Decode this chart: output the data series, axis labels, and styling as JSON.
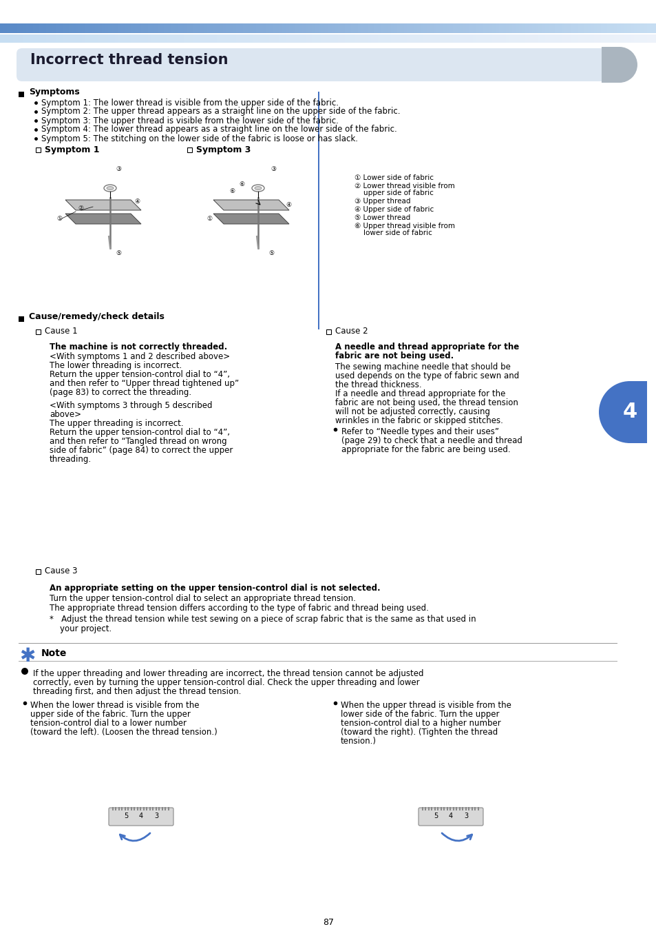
{
  "page_bg": "#ffffff",
  "title_box_color": "#dce6f1",
  "title_text": "Incorrect thread tension",
  "title_font_size": 15,
  "body_font_size": 8.5,
  "small_font_size": 7.5,
  "section_label_symptoms": "Symptoms",
  "symptom_items": [
    "Symptom 1: The lower thread is visible from the upper side of the fabric.",
    "Symptom 2: The upper thread appears as a straight line on the upper side of the fabric.",
    "Symptom 3: The upper thread is visible from the lower side of the fabric.",
    "Symptom 4: The lower thread appears as a straight line on the lower side of the fabric.",
    "Symptom 5: The stitching on the lower side of the fabric is loose or has slack."
  ],
  "symptom1_label": "Symptom 1",
  "symptom3_label": "Symptom 3",
  "legend_items": [
    "① Lower side of fabric",
    "② Lower thread visible from",
    "    upper side of fabric",
    "③ Upper thread",
    "④ Upper side of fabric",
    "⑤ Lower thread",
    "⑥ Upper thread visible from",
    "    lower side of fabric"
  ],
  "section_cause_remedy": "Cause/remedy/check details",
  "cause1_label": "Cause 1",
  "cause1_bold": "The machine is not correctly threaded.",
  "cause1_text1a": "<With symptoms 1 and 2 described above>",
  "cause1_text1b": "The lower threading is incorrect.",
  "cause1_text1c": "Return the upper tension-control dial to “4”,",
  "cause1_text1d": "and then refer to “Upper thread tightened up”",
  "cause1_text1e": "(page 83) to correct the threading.",
  "cause1_text2a": "<With symptoms 3 through 5 described",
  "cause1_text2b": "above>",
  "cause1_text2c": "The upper threading is incorrect.",
  "cause1_text2d": "Return the upper tension-control dial to “4”,",
  "cause1_text2e": "and then refer to “Tangled thread on wrong",
  "cause1_text2f": "side of fabric” (page 84) to correct the upper",
  "cause1_text2g": "threading.",
  "cause2_label": "Cause 2",
  "cause2_bold1": "A needle and thread appropriate for the",
  "cause2_bold2": "fabric are not being used.",
  "cause2_lines": [
    "The sewing machine needle that should be",
    "used depends on the type of fabric sewn and",
    "the thread thickness.",
    "If a needle and thread appropriate for the",
    "fabric are not being used, the thread tension",
    "will not be adjusted correctly, causing",
    "wrinkles in the fabric or skipped stitches."
  ],
  "cause2_bullet1": "Refer to “Needle types and their uses”",
  "cause2_bullet2": "(page 29) to check that a needle and thread",
  "cause2_bullet3": "appropriate for the fabric are being used.",
  "cause3_label": "Cause 3",
  "cause3_bold": "An appropriate setting on the upper tension-control dial is not selected.",
  "cause3_line1": "Turn the upper tension-control dial to select an appropriate thread tension.",
  "cause3_line2": "The appropriate thread tension differs according to the type of fabric and thread being used.",
  "cause3_asterisk1": "*   Adjust the thread tension while test sewing on a piece of scrap fabric that is the same as that used in",
  "cause3_asterisk2": "    your project.",
  "note_title": "Note",
  "note_bullet1": "If the upper threading and lower threading are incorrect, the thread tension cannot be adjusted",
  "note_bullet2": "correctly, even by turning the upper tension-control dial. Check the upper threading and lower",
  "note_bullet3": "threading first, and then adjust the thread tension.",
  "note_left1": "When the lower thread is visible from the",
  "note_left2": "upper side of the fabric. Turn the upper",
  "note_left3": "tension-control dial to a lower number",
  "note_left4": "(toward the left). (Loosen the thread tension.)",
  "note_right1": "When the upper thread is visible from the",
  "note_right2": "lower side of the fabric. Turn the upper",
  "note_right3": "tension-control dial to a higher number",
  "note_right4": "(toward the right). (Tighten the thread",
  "note_right5": "tension.)",
  "page_num": "87",
  "divider_color": "#4472c4",
  "tab_color": "#4472c4",
  "tab_text": "4"
}
